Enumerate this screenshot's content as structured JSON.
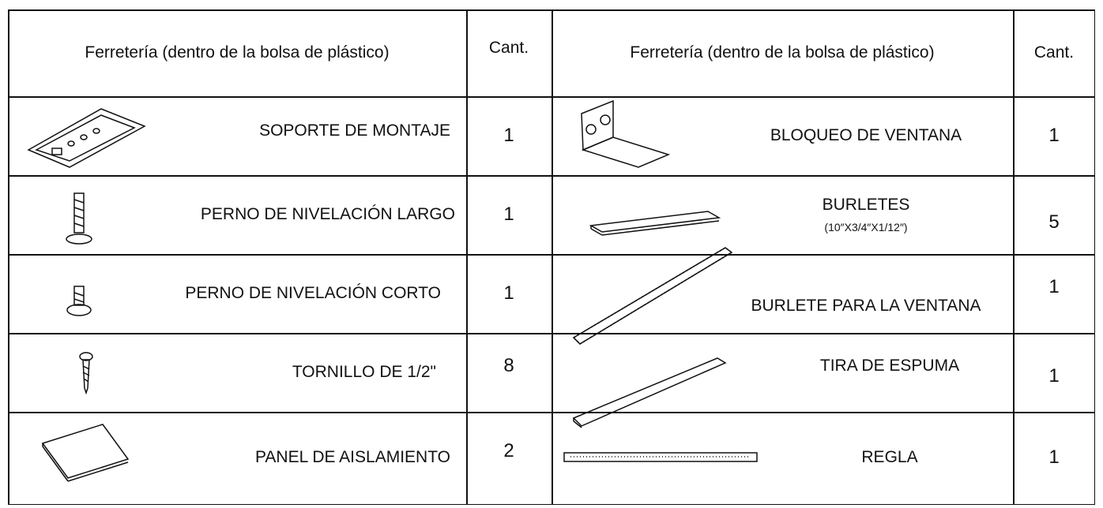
{
  "header": [
    "Ferretería (dentro de la bolsa de plástico)",
    "Cant.",
    "Ferretería (dentro de la bolsa de plástico)",
    "Cant."
  ],
  "rows": [
    {
      "left": {
        "name": "SOPORTE DE MONTAJE",
        "qty": 1
      },
      "right": {
        "name": "BLOQUEO DE VENTANA",
        "qty": 1
      }
    },
    {
      "left": {
        "name": "PERNO DE NIVELACIÓN LARGO",
        "qty": 1
      },
      "right": {
        "name": "BURLETES",
        "sub": "(10″X3/4″X1/12″)",
        "qty": 5
      }
    },
    {
      "left": {
        "name": "PERNO DE NIVELACIÓN CORTO",
        "qty": 1
      },
      "right": {
        "name": "BURLETE PARA LA VENTANA",
        "qty": 1
      }
    },
    {
      "left": {
        "name": "TORNILLO DE 1/2\"",
        "qty": 8
      },
      "right": {
        "name": "TIRA DE ESPUMA",
        "qty": 1
      }
    },
    {
      "left": {
        "name": "PANEL DE AISLAMIENTO",
        "qty": 2
      },
      "right": {
        "name": "REGLA",
        "qty": 1
      }
    }
  ]
}
